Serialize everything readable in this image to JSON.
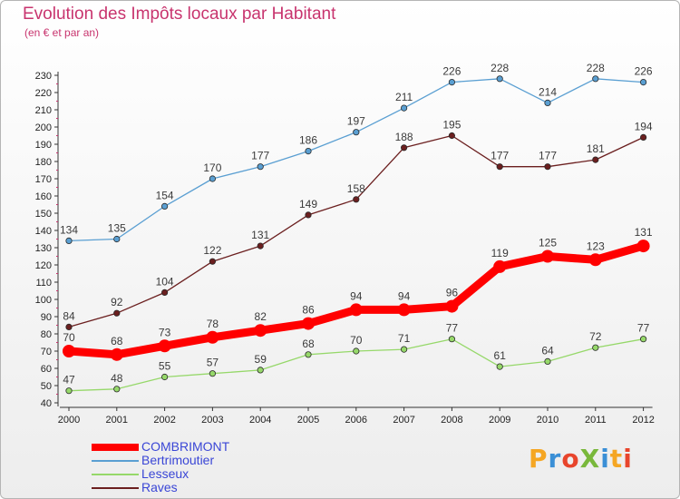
{
  "title": "Evolution des Impôts locaux par Habitant",
  "subtitle": "(en € et par an)",
  "logo": {
    "text": "ProXiti",
    "colors": [
      "#f5a623",
      "#3a8fd6",
      "#e8452c",
      "#79b83b",
      "#3a8fd6",
      "#f5a623",
      "#e8452c"
    ]
  },
  "chart_data": {
    "type": "line",
    "title": "Evolution des Impôts locaux par Habitant",
    "subtitle": "(en € et par an)",
    "x": [
      "2000",
      "2001",
      "2002",
      "2003",
      "2004",
      "2005",
      "2006",
      "2007",
      "2008",
      "2009",
      "2010",
      "2011",
      "2012"
    ],
    "ylim": [
      40,
      230
    ],
    "ytick_step": 10,
    "grid": false,
    "legend_position": "bottom-left",
    "series": [
      {
        "name": "COMBRIMONT",
        "color": "#ff0000",
        "text_color": "#3a46d6",
        "bold": true,
        "values": [
          70,
          68,
          73,
          78,
          82,
          86,
          94,
          94,
          96,
          119,
          125,
          123,
          131
        ]
      },
      {
        "name": "Bertrimoutier",
        "color": "#5a9fd2",
        "text_color": "#3a46d6",
        "bold": false,
        "values": [
          134,
          135,
          154,
          170,
          177,
          186,
          197,
          211,
          226,
          228,
          214,
          228,
          226
        ]
      },
      {
        "name": "Lesseux",
        "color": "#96d86a",
        "text_color": "#3a46d6",
        "bold": false,
        "values": [
          47,
          48,
          55,
          57,
          59,
          68,
          70,
          71,
          77,
          61,
          64,
          72,
          77
        ]
      },
      {
        "name": "Raves",
        "color": "#6b1f1f",
        "text_color": "#3a46d6",
        "bold": false,
        "values": [
          84,
          92,
          104,
          122,
          131,
          149,
          158,
          188,
          195,
          177,
          177,
          181,
          194
        ]
      }
    ]
  }
}
